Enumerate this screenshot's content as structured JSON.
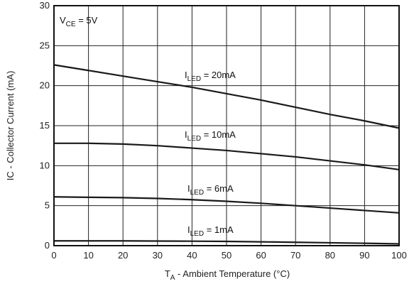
{
  "chart_data": {
    "type": "line",
    "title": "",
    "xlabel": {
      "prefix": "T",
      "sub": "A",
      "suffix": " - Ambient Temperature (°C)"
    },
    "ylabel": "IC - Collector Current (mA)",
    "xlim": [
      0,
      100
    ],
    "ylim": [
      0,
      30
    ],
    "xticks": [
      0,
      10,
      20,
      30,
      40,
      50,
      60,
      70,
      80,
      90,
      100
    ],
    "yticks": [
      0,
      5,
      10,
      15,
      20,
      25,
      30
    ],
    "grid": true,
    "condition": {
      "prefix": "V",
      "sub": "CE",
      "suffix": " = 5V"
    },
    "series": [
      {
        "label_prefix": "I",
        "label_sub": "LED",
        "label_suffix": " = 20mA",
        "x": [
          0,
          10,
          20,
          30,
          40,
          50,
          60,
          70,
          80,
          90,
          100
        ],
        "y": [
          22.6,
          21.9,
          21.2,
          20.5,
          19.8,
          19.0,
          18.2,
          17.3,
          16.4,
          15.6,
          14.7
        ]
      },
      {
        "label_prefix": "I",
        "label_sub": "LED",
        "label_suffix": " = 10mA",
        "x": [
          0,
          10,
          20,
          30,
          40,
          50,
          60,
          70,
          80,
          90,
          100
        ],
        "y": [
          12.8,
          12.8,
          12.7,
          12.5,
          12.2,
          11.9,
          11.5,
          11.1,
          10.6,
          10.1,
          9.5
        ]
      },
      {
        "label_prefix": "I",
        "label_sub": "LED",
        "label_suffix": " = 6mA",
        "x": [
          0,
          10,
          20,
          30,
          40,
          50,
          60,
          70,
          80,
          90,
          100
        ],
        "y": [
          6.1,
          6.05,
          6.0,
          5.9,
          5.75,
          5.55,
          5.3,
          5.0,
          4.7,
          4.4,
          4.1
        ]
      },
      {
        "label_prefix": "I",
        "label_sub": "LED",
        "label_suffix": " = 1mA",
        "x": [
          0,
          10,
          20,
          30,
          40,
          50,
          60,
          70,
          80,
          90,
          100
        ],
        "y": [
          0.6,
          0.6,
          0.6,
          0.58,
          0.56,
          0.53,
          0.48,
          0.42,
          0.36,
          0.3,
          0.22
        ]
      }
    ],
    "colors": {
      "line": "#1a1a1a",
      "grid": "#222222",
      "frame": "#111111"
    }
  }
}
